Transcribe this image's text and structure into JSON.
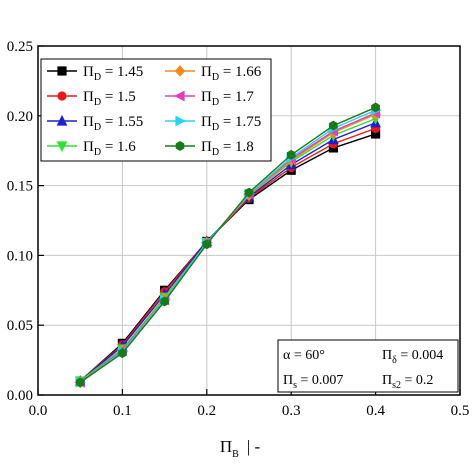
{
  "chart_data": {
    "type": "line",
    "x": [
      0.05,
      0.1,
      0.15,
      0.2,
      0.25,
      0.3,
      0.35,
      0.4
    ],
    "xlabel_main": "Π",
    "xlabel_sub": "B",
    "xlabel_unit": "|  -",
    "xlim": [
      0.0,
      0.5
    ],
    "ylim": [
      0.0,
      0.25
    ],
    "xticks": [
      0.0,
      0.1,
      0.2,
      0.3,
      0.4,
      0.5
    ],
    "yticks": [
      0.0,
      0.05,
      0.1,
      0.15,
      0.2,
      0.25
    ],
    "xtick_labels": [
      "0.0",
      "0.1",
      "0.2",
      "0.3",
      "0.4",
      "0.5"
    ],
    "ytick_labels": [
      "0.00",
      "0.05",
      "0.10",
      "0.15",
      "0.20",
      "0.25"
    ],
    "grid": true,
    "legend_position": "top-left",
    "series": [
      {
        "name_main": "Π",
        "name_sub": "D",
        "name_value": "= 1.45",
        "color": "#000000",
        "marker": "square",
        "values": [
          0.01,
          0.037,
          0.075,
          0.11,
          0.14,
          0.161,
          0.177,
          0.187
        ]
      },
      {
        "name_main": "Π",
        "name_sub": "D",
        "name_value": "= 1.5",
        "color": "#e41a1c",
        "marker": "circle",
        "values": [
          0.01,
          0.036,
          0.074,
          0.11,
          0.141,
          0.163,
          0.18,
          0.191
        ]
      },
      {
        "name_main": "Π",
        "name_sub": "D",
        "name_value": "= 1.55",
        "color": "#1f1fcc",
        "marker": "triangle-up",
        "values": [
          0.01,
          0.035,
          0.072,
          0.11,
          0.142,
          0.165,
          0.183,
          0.195
        ]
      },
      {
        "name_main": "Π",
        "name_sub": "D",
        "name_value": "= 1.6",
        "color": "#33dd33",
        "marker": "triangle-down",
        "values": [
          0.01,
          0.033,
          0.07,
          0.109,
          0.143,
          0.167,
          0.186,
          0.198
        ]
      },
      {
        "name_main": "Π",
        "name_sub": "D",
        "name_value": "= 1.66",
        "color": "#f28a1e",
        "marker": "diamond",
        "values": [
          0.009,
          0.032,
          0.069,
          0.109,
          0.143,
          0.168,
          0.188,
          0.201
        ]
      },
      {
        "name_main": "Π",
        "name_sub": "D",
        "name_value": "= 1.7",
        "color": "#e040c0",
        "marker": "triangle-left",
        "values": [
          0.009,
          0.032,
          0.068,
          0.109,
          0.144,
          0.169,
          0.189,
          0.202
        ]
      },
      {
        "name_main": "Π",
        "name_sub": "D",
        "name_value": "= 1.75",
        "color": "#28d4ee",
        "marker": "triangle-right",
        "values": [
          0.009,
          0.031,
          0.068,
          0.109,
          0.144,
          0.17,
          0.191,
          0.204
        ]
      },
      {
        "name_main": "Π",
        "name_sub": "D",
        "name_value": "= 1.8",
        "color": "#1a7a1a",
        "marker": "hexagon",
        "values": [
          0.009,
          0.03,
          0.067,
          0.108,
          0.145,
          0.172,
          0.193,
          0.206
        ]
      }
    ],
    "annotations": [
      {
        "main": "α = 60°",
        "sub": "",
        "rest": ""
      },
      {
        "main": "Π",
        "sub": "δ",
        "rest": " = 0.004"
      },
      {
        "main": "Π",
        "sub": "s",
        "rest": " = 0.007"
      },
      {
        "main": "Π",
        "sub": "s2",
        "rest": " = 0.2"
      }
    ]
  }
}
